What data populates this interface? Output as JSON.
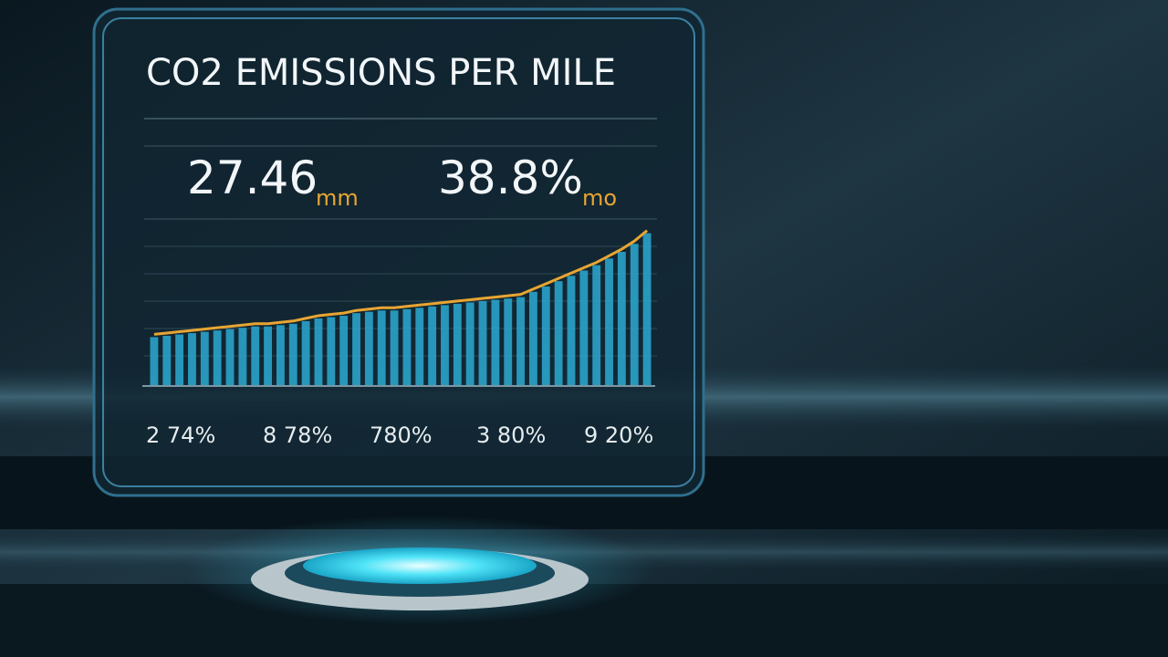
{
  "panel": {
    "title": "CO2 EMISSIONS PER MILE",
    "stats": [
      {
        "value": "27.46",
        "unit": "mm"
      },
      {
        "value": "38.8%",
        "unit": "mo"
      }
    ],
    "labels": [
      "2 74%",
      "8 78%",
      "780%",
      "3 80%",
      "9 20%"
    ]
  },
  "chart_data": {
    "type": "bar",
    "values": [
      18,
      18.5,
      19,
      19.5,
      20,
      20.5,
      21,
      21.5,
      22,
      22,
      22.5,
      23,
      24,
      25,
      25.5,
      26,
      27,
      27.5,
      28,
      28,
      28.5,
      29,
      29.5,
      30,
      30.5,
      31,
      31.5,
      32,
      32.5,
      33,
      35,
      37,
      39,
      41,
      43,
      45,
      47.5,
      50,
      53,
      57
    ],
    "color": "#2aa3c9",
    "line_color": "#e8a532",
    "ylim": [
      0,
      100
    ]
  }
}
